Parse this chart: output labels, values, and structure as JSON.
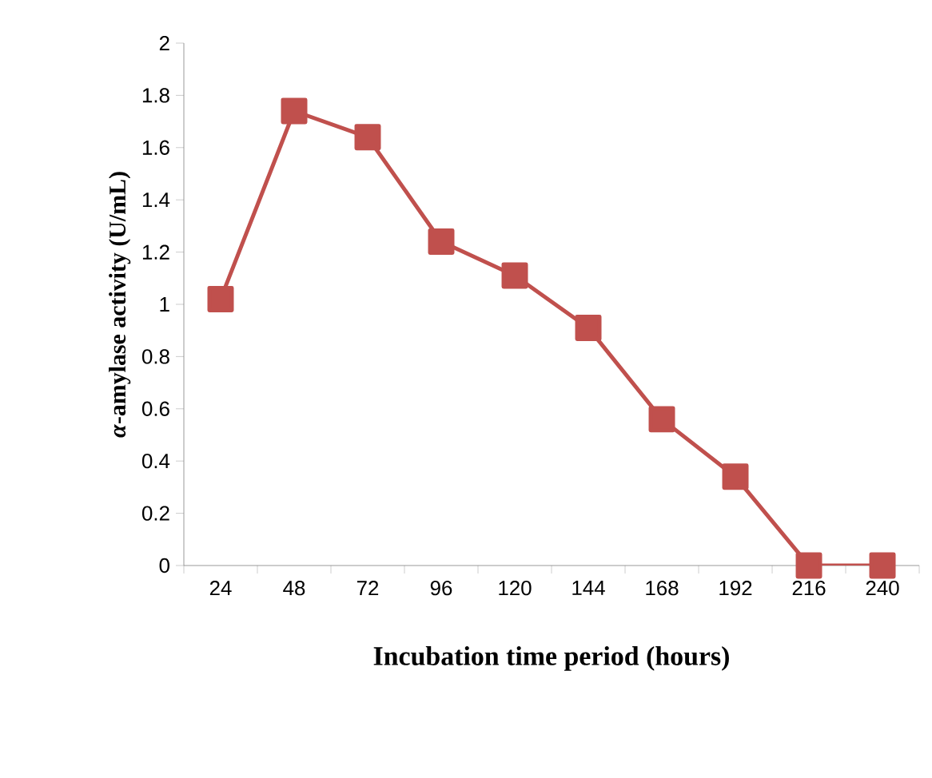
{
  "chart_data": {
    "type": "line",
    "xlabel": "Incubation time period (hours)",
    "ylabel": "*α*-amylase activity (U/mL)",
    "categories": [
      "24",
      "48",
      "72",
      "96",
      "120",
      "144",
      "168",
      "192",
      "216",
      "240"
    ],
    "series": [
      {
        "color": "#c0504d",
        "values": [
          1.02,
          1.74,
          1.64,
          1.24,
          1.11,
          0.91,
          0.56,
          0.34,
          0.0,
          0.0
        ]
      }
    ],
    "ylim": [
      0,
      2
    ],
    "yticks": [
      0,
      0.2,
      0.4,
      0.6,
      0.8,
      1,
      1.2,
      1.4,
      1.6,
      1.8,
      2
    ],
    "marker": "square",
    "line_style": "solid"
  }
}
